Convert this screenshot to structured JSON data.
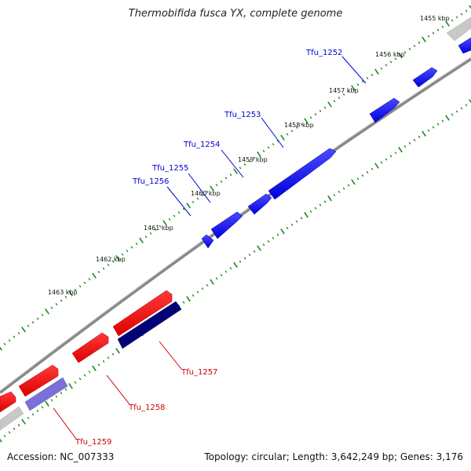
{
  "title": "Thermobifida fusca YX, complete genome",
  "footer": {
    "accession": "Accession: NC_007333",
    "summary": "Topology: circular; Length: 3,642,249 bp; Genes: 3,176"
  },
  "kbp_labels": [
    "1455 kbp",
    "1456 kbp",
    "1457 kbp",
    "1458 kbp",
    "1459 kbp",
    "1460 kbp",
    "1461 kbp",
    "1462 kbp",
    "1463 kbp"
  ],
  "forward_genes": [
    "Tfu_1252",
    "Tfu_1253",
    "Tfu_1254",
    "Tfu_1255",
    "Tfu_1256"
  ],
  "reverse_genes": [
    "Tfu_1257",
    "Tfu_1258",
    "Tfu_1259"
  ],
  "colors": {
    "forward_gene": "#0000ee",
    "reverse_gene_red": "#ee0000",
    "reverse_gene_navy": "#000077",
    "reverse_gene_lilac": "#7a70d8",
    "backbone": "#888888",
    "tick": "#1a8a1a",
    "forward_label": "#0000cc",
    "reverse_label": "#cc0000"
  }
}
